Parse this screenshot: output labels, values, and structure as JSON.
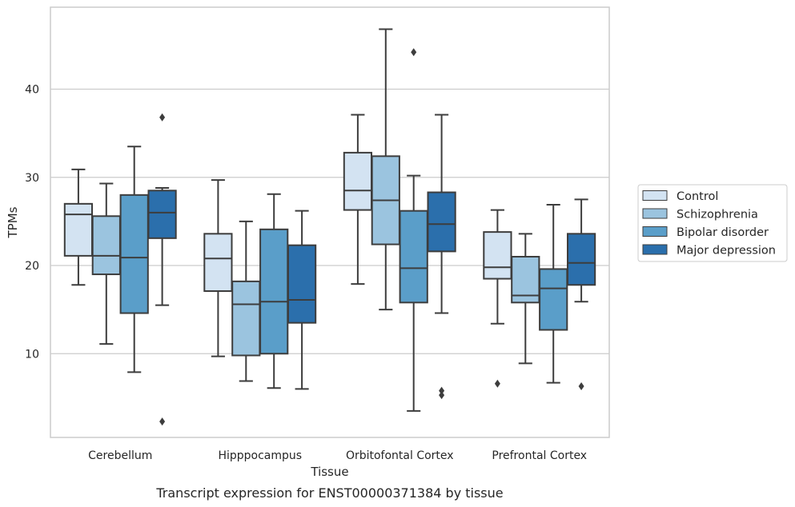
{
  "chart_data": {
    "type": "box",
    "title": "",
    "caption": "Transcript expression for ENST00000371384 by tissue",
    "xlabel": "Tissue",
    "ylabel": "TPMs",
    "ylim": [
      0.5,
      49.3
    ],
    "yticks": [
      10,
      20,
      30,
      40
    ],
    "grid": true,
    "legend_position": "right",
    "categories": [
      "Cerebellum",
      "Hipppocampus",
      "Orbitofontal Cortex",
      "Prefrontal Cortex"
    ],
    "series": [
      {
        "name": "Control",
        "color": "#d3e3f2",
        "boxes": [
          {
            "whislo": 17.8,
            "q1": 21.1,
            "med": 25.8,
            "q3": 27.0,
            "whishi": 30.9,
            "fliers": []
          },
          {
            "whislo": 9.7,
            "q1": 17.1,
            "med": 20.8,
            "q3": 23.6,
            "whishi": 29.7,
            "fliers": []
          },
          {
            "whislo": 17.9,
            "q1": 26.3,
            "med": 28.5,
            "q3": 32.8,
            "whishi": 37.1,
            "fliers": []
          },
          {
            "whislo": 13.4,
            "q1": 18.5,
            "med": 19.8,
            "q3": 23.8,
            "whishi": 26.3,
            "fliers": [
              6.6
            ]
          }
        ]
      },
      {
        "name": "Schizophrenia",
        "color": "#9bc4df",
        "boxes": [
          {
            "whislo": 11.1,
            "q1": 19.0,
            "med": 21.1,
            "q3": 25.6,
            "whishi": 29.3,
            "fliers": []
          },
          {
            "whislo": 6.9,
            "q1": 9.8,
            "med": 15.6,
            "q3": 18.2,
            "whishi": 25.0,
            "fliers": []
          },
          {
            "whislo": 15.0,
            "q1": 22.4,
            "med": 27.4,
            "q3": 32.4,
            "whishi": 46.8,
            "fliers": []
          },
          {
            "whislo": 8.9,
            "q1": 15.8,
            "med": 16.6,
            "q3": 21.0,
            "whishi": 23.6,
            "fliers": []
          }
        ]
      },
      {
        "name": "Bipolar disorder",
        "color": "#5a9ec9",
        "boxes": [
          {
            "whislo": 7.9,
            "q1": 14.6,
            "med": 20.9,
            "q3": 28.0,
            "whishi": 33.5,
            "fliers": []
          },
          {
            "whislo": 6.1,
            "q1": 10.0,
            "med": 15.9,
            "q3": 24.1,
            "whishi": 28.1,
            "fliers": []
          },
          {
            "whislo": 3.5,
            "q1": 15.8,
            "med": 19.7,
            "q3": 26.2,
            "whishi": 30.2,
            "fliers": [
              44.2
            ]
          },
          {
            "whislo": 6.7,
            "q1": 12.7,
            "med": 17.4,
            "q3": 19.6,
            "whishi": 26.9,
            "fliers": []
          }
        ]
      },
      {
        "name": "Major depression",
        "color": "#2b6fac",
        "boxes": [
          {
            "whislo": 15.5,
            "q1": 23.1,
            "med": 26.0,
            "q3": 28.5,
            "whishi": 28.8,
            "fliers": [
              36.8,
              2.3
            ]
          },
          {
            "whislo": 6.0,
            "q1": 13.5,
            "med": 16.1,
            "q3": 22.3,
            "whishi": 26.2,
            "fliers": []
          },
          {
            "whislo": 14.6,
            "q1": 21.6,
            "med": 24.7,
            "q3": 28.3,
            "whishi": 37.1,
            "fliers": [
              5.8,
              5.3
            ]
          },
          {
            "whislo": 15.9,
            "q1": 17.8,
            "med": 20.3,
            "q3": 23.6,
            "whishi": 27.5,
            "fliers": [
              6.3
            ]
          }
        ]
      }
    ]
  }
}
